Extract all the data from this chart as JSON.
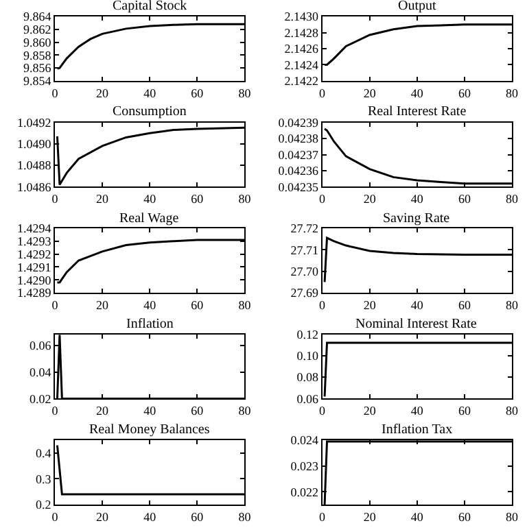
{
  "chart_data": [
    {
      "type": "line",
      "title": "Capital Stock",
      "x": [
        1,
        2,
        5,
        10,
        15,
        20,
        30,
        40,
        50,
        60,
        80
      ],
      "series": [
        {
          "color": "#000000",
          "values": [
            9.8559,
            9.856,
            9.8575,
            9.8593,
            9.8605,
            9.8613,
            9.8621,
            9.8625,
            9.8627,
            9.8628,
            9.8628
          ]
        }
      ],
      "xlim": [
        0,
        80
      ],
      "xticks": [
        0,
        20,
        40,
        60,
        80
      ],
      "ylim": [
        9.854,
        9.864
      ],
      "yticks": [
        9.854,
        9.856,
        9.858,
        {
          "value": 9.86,
          "label": "9.860"
        },
        9.862,
        9.864
      ]
    },
    {
      "type": "line",
      "title": "Output",
      "x": [
        1,
        2,
        5,
        10,
        20,
        30,
        40,
        50,
        60,
        80
      ],
      "series": [
        {
          "color": "#000000",
          "values": [
            2.1424,
            2.1424,
            2.14248,
            2.14263,
            2.14277,
            2.14284,
            2.14288,
            2.14289,
            2.1429,
            2.1429
          ]
        }
      ],
      "xlim": [
        0,
        80
      ],
      "xticks": [
        0,
        20,
        40,
        60,
        80
      ],
      "ylim": [
        2.1422,
        2.143
      ],
      "yticks": [
        2.1422,
        2.1424,
        2.1426,
        2.1428,
        {
          "value": 2.143,
          "label": "2.1430"
        }
      ]
    },
    {
      "type": "line",
      "title": "Consumption",
      "x": [
        1,
        2,
        5,
        10,
        20,
        30,
        40,
        50,
        60,
        80
      ],
      "series": [
        {
          "color": "#000000",
          "values": [
            1.04907,
            1.04862,
            1.04873,
            1.04886,
            1.04898,
            1.04906,
            1.0491,
            1.04913,
            1.04914,
            1.04915
          ]
        }
      ],
      "xlim": [
        0,
        80
      ],
      "xticks": [
        0,
        20,
        40,
        60,
        80
      ],
      "ylim": [
        1.0486,
        1.0492
      ],
      "yticks": [
        1.0486,
        1.0488,
        {
          "value": 1.049,
          "label": "1.0490"
        },
        1.0492
      ]
    },
    {
      "type": "line",
      "title": "Real Interest Rate",
      "x": [
        1,
        2,
        5,
        10,
        20,
        30,
        40,
        50,
        60,
        80
      ],
      "series": [
        {
          "color": "#000000",
          "values": [
            0.042386,
            0.042385,
            0.042378,
            0.042369,
            0.042361,
            0.042356,
            0.042354,
            0.042353,
            0.042352,
            0.042352
          ]
        }
      ],
      "xlim": [
        0,
        80
      ],
      "xticks": [
        0,
        20,
        40,
        60,
        80
      ],
      "ylim": [
        0.04235,
        0.04239
      ],
      "yticks": [
        0.04235,
        0.04236,
        0.04237,
        0.04238,
        0.04239
      ]
    },
    {
      "type": "line",
      "title": "Real Wage",
      "x": [
        1,
        2,
        5,
        10,
        20,
        30,
        40,
        50,
        60,
        80
      ],
      "series": [
        {
          "color": "#000000",
          "values": [
            1.42898,
            1.42898,
            1.42906,
            1.42915,
            1.42922,
            1.42927,
            1.42929,
            1.4293,
            1.42931,
            1.42931
          ]
        }
      ],
      "xlim": [
        0,
        80
      ],
      "xticks": [
        0,
        20,
        40,
        60,
        80
      ],
      "ylim": [
        1.4289,
        1.4294
      ],
      "yticks": [
        1.4289,
        {
          "value": 1.429,
          "label": "1.4290"
        },
        1.4291,
        1.4292,
        1.4293,
        1.4294
      ]
    },
    {
      "type": "line",
      "title": "Saving Rate",
      "x": [
        1,
        2,
        5,
        10,
        20,
        30,
        40,
        60,
        80
      ],
      "series": [
        {
          "color": "#000000",
          "values": [
            27.695,
            27.7155,
            27.714,
            27.712,
            27.7095,
            27.7085,
            27.708,
            27.7077,
            27.7077
          ]
        }
      ],
      "xlim": [
        0,
        80
      ],
      "xticks": [
        0,
        20,
        40,
        60,
        80
      ],
      "ylim": [
        27.69,
        27.72
      ],
      "yticks": [
        27.69,
        {
          "value": 27.7,
          "label": "27.70"
        },
        27.71,
        27.72
      ]
    },
    {
      "type": "line",
      "title": "Inflation",
      "x": [
        1,
        2,
        3,
        80
      ],
      "series": [
        {
          "color": "#000000",
          "values": [
            0.02,
            0.068,
            0.02,
            0.02
          ]
        }
      ],
      "xlim": [
        0,
        80
      ],
      "xticks": [
        0,
        20,
        40,
        60,
        80
      ],
      "ylim": [
        0.02,
        0.0685
      ],
      "yticks": [
        0.02,
        0.04,
        0.06
      ]
    },
    {
      "type": "line",
      "title": "Nominal Interest Rate",
      "x": [
        1,
        2,
        80
      ],
      "series": [
        {
          "color": "#000000",
          "values": [
            0.062,
            0.112,
            0.112
          ]
        }
      ],
      "xlim": [
        0,
        80
      ],
      "xticks": [
        0,
        20,
        40,
        60,
        80
      ],
      "ylim": [
        0.06,
        0.12
      ],
      "yticks": [
        0.06,
        0.08,
        {
          "value": 0.1,
          "label": "0.10"
        },
        0.12
      ]
    },
    {
      "type": "line",
      "title": "Real Money Balances",
      "x": [
        1,
        3,
        80
      ],
      "series": [
        {
          "color": "#000000",
          "values": [
            0.43,
            0.24,
            0.24
          ]
        }
      ],
      "xlim": [
        0,
        80
      ],
      "xticks": [
        0,
        20,
        40,
        60,
        80
      ],
      "ylim": [
        0.2,
        0.45
      ],
      "yticks": [
        0.2,
        0.3,
        0.4
      ]
    },
    {
      "type": "line",
      "title": "Inflation Tax",
      "x": [
        1,
        2,
        80
      ],
      "series": [
        {
          "color": "#000000",
          "values": [
            0.0215,
            0.02395,
            0.02395
          ]
        }
      ],
      "xlim": [
        0,
        80
      ],
      "xticks": [
        0,
        20,
        40,
        60,
        80
      ],
      "ylim": [
        0.0215,
        0.024
      ],
      "yticks": [
        0.022,
        0.023,
        0.024
      ]
    }
  ]
}
